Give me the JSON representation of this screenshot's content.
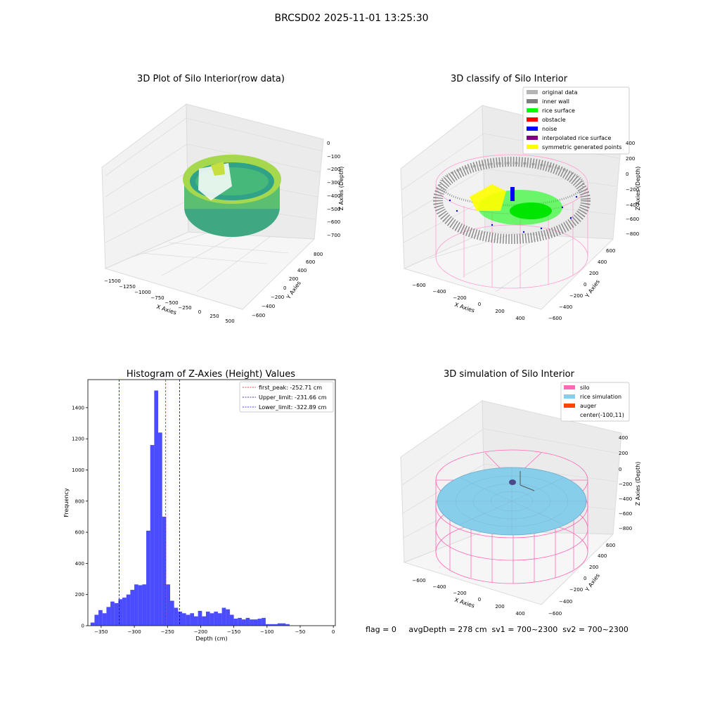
{
  "figure": {
    "suptitle": "BRCSD02 2025-11-01 13:25:30",
    "footer": "flag = 0     avgDepth = 278 cm  sv1 = 700~2300  sv2 = 700~2300"
  },
  "panels": {
    "raw": {
      "title": "3D Plot of Silo Interior(row data)",
      "xlabel": "X Axies",
      "ylabel": "Y Axies",
      "zlabel": "Z Axies (Depth)",
      "xticks": [
        "−1500",
        "−1250",
        "−1000",
        "−750",
        "−500",
        "−250",
        "0",
        "250",
        "500"
      ],
      "yticks": [
        "−600",
        "−400",
        "−200",
        "0",
        "200",
        "400",
        "600",
        "800"
      ],
      "zticks": [
        "0",
        "−100",
        "−200",
        "−300",
        "−400",
        "−500",
        "−600",
        "−700"
      ]
    },
    "classify": {
      "title": "3D classify of Silo Interior",
      "xlabel": "X Axies",
      "ylabel": "Y Axies",
      "zlabel": "Z Axies (Depth)",
      "xticks": [
        "−600",
        "−400",
        "−200",
        "0",
        "200",
        "400"
      ],
      "yticks": [
        "−600",
        "−400",
        "−200",
        "0",
        "200",
        "400",
        "600"
      ],
      "zticks": [
        "400",
        "200",
        "0",
        "−200",
        "−400",
        "−600",
        "−800"
      ],
      "legend": [
        {
          "label": "original data",
          "color": "#b5b5b5"
        },
        {
          "label": "inner wall",
          "color": "#808080"
        },
        {
          "label": "rice surface",
          "color": "#00ff00"
        },
        {
          "label": "obstacle",
          "color": "#ff0000"
        },
        {
          "label": "noise",
          "color": "#0000ff"
        },
        {
          "label": "interpolated rice surface",
          "color": "#800080"
        },
        {
          "label": "symmetric generated points",
          "color": "#ffff00"
        }
      ]
    },
    "simulation": {
      "title": "3D simulation of Silo Interior",
      "xlabel": "X Axies",
      "ylabel": "Y Axies",
      "zlabel": "Z Axies (Depth)",
      "xticks": [
        "−600",
        "−400",
        "−200",
        "0",
        "200",
        "400"
      ],
      "yticks": [
        "−600",
        "−400",
        "−200",
        "0",
        "200",
        "400",
        "600"
      ],
      "zticks": [
        "400",
        "200",
        "0",
        "−200",
        "−400",
        "−600",
        "−800"
      ],
      "legend": [
        {
          "label": "silo",
          "color": "#ff69b4"
        },
        {
          "label": "rice simulation",
          "color": "#87ceeb"
        },
        {
          "label": "auger",
          "color": "#ff4500"
        },
        {
          "label": "center(-100,11)",
          "color": ""
        }
      ]
    }
  },
  "chart_data": {
    "type": "bar",
    "title": "Histogram of Z-Axies (Height) Values",
    "xlabel": "Depth (cm)",
    "ylabel": "Frequency",
    "xlim": [
      -370,
      3
    ],
    "ylim": [
      0,
      1580
    ],
    "bin_width": 6,
    "bin_starts": [
      -366,
      -360,
      -354,
      -348,
      -342,
      -336,
      -330,
      -324,
      -318,
      -312,
      -306,
      -300,
      -294,
      -288,
      -282,
      -276,
      -270,
      -264,
      -258,
      -252,
      -246,
      -240,
      -234,
      -228,
      -222,
      -216,
      -210,
      -204,
      -198,
      -192,
      -186,
      -180,
      -174,
      -168,
      -162,
      -156,
      -150,
      -144,
      -138,
      -132,
      -126,
      -120,
      -114,
      -108,
      -102,
      -96,
      -90,
      -84,
      -78,
      -72,
      -66,
      -60,
      -54,
      -48,
      -42,
      -36,
      -30,
      -24,
      -18
    ],
    "values": [
      20,
      70,
      100,
      80,
      120,
      155,
      145,
      170,
      180,
      200,
      230,
      265,
      260,
      265,
      610,
      1160,
      1510,
      1240,
      700,
      265,
      160,
      115,
      90,
      80,
      70,
      80,
      60,
      95,
      60,
      90,
      80,
      90,
      80,
      115,
      105,
      70,
      45,
      50,
      40,
      50,
      40,
      40,
      45,
      50,
      10,
      10,
      10,
      15,
      15,
      10,
      0,
      0,
      0,
      0,
      0,
      0,
      0,
      0,
      0
    ],
    "xticks": [
      -350,
      -300,
      -250,
      -200,
      -150,
      -100,
      -50,
      0
    ],
    "xtick_labels": [
      "−350",
      "−300",
      "−250",
      "−200",
      "−150",
      "−100",
      "−50",
      "0"
    ],
    "yticks": [
      0,
      200,
      400,
      600,
      800,
      1000,
      1200,
      1400
    ],
    "bar_color": "#0000ff",
    "vlines": [
      {
        "x": -252.71,
        "color": "#ff0000",
        "label": "first_peak: -252.71 cm"
      },
      {
        "x": -231.66,
        "color": "#00008b",
        "label": "Upper_limit: -231.66 cm"
      },
      {
        "x": -322.89,
        "color": "#0000ff",
        "label": "Lower_limit: -322.89 cm"
      }
    ]
  }
}
